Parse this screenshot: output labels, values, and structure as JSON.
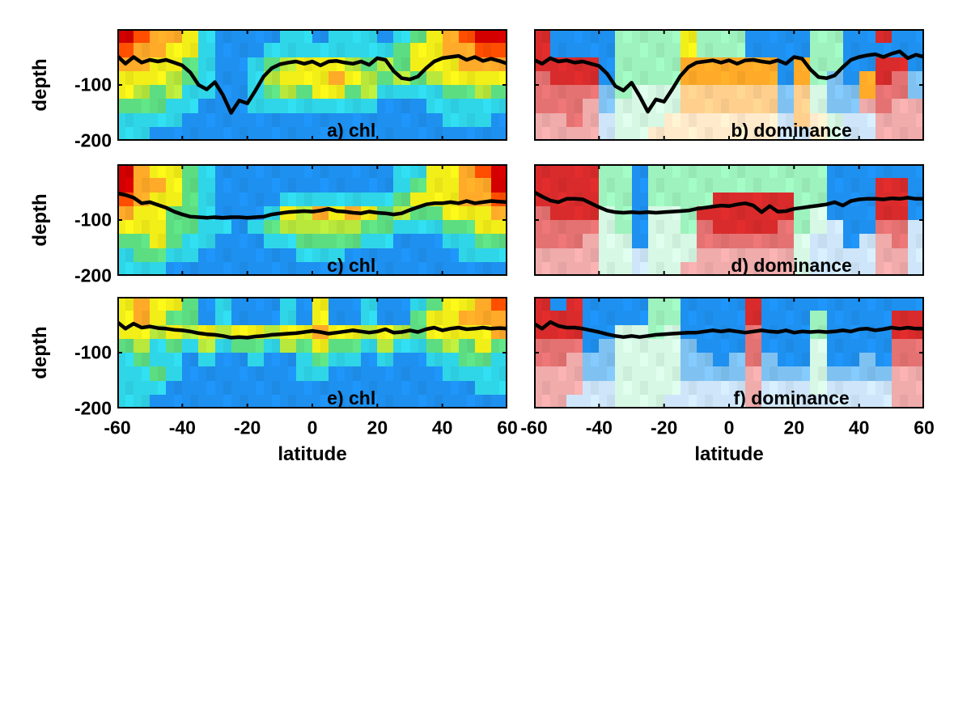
{
  "figure": {
    "background": "#ffffff"
  },
  "axes": {
    "xlabel": "latitude",
    "ylabel": "depth",
    "x_ticks": [
      -60,
      -40,
      -20,
      0,
      20,
      40,
      60
    ],
    "y_ticks": [
      -100,
      -200
    ],
    "x_range": [
      -60,
      60
    ],
    "y_range": [
      0,
      -200
    ]
  },
  "palette": {
    "R": "#d40000",
    "r": "#ff4e00",
    "O": "#ffaa28",
    "o": "#ffcf8e",
    "K": "#ffeacb",
    "Y": "#f2ee18",
    "g": "#b8e83c",
    "G": "#5ddd82",
    "C": "#2fd6e8",
    "B": "#1e90f0",
    "A": "#d92b2b",
    "a": "#e57272",
    "q": "#f0abab",
    "M": "#9df2bd",
    "m": "#d6f8e4",
    "l": "#7fc2f2",
    "L": "#cfe6fa"
  },
  "chart_data": {
    "type": "heatmap",
    "x_axis": "latitude",
    "y_axis": "depth",
    "grid_lat_bin_deg": 5,
    "grid_depth_bin_m": 25,
    "line_lat_start": -60,
    "line_lat_step": 2.5,
    "panels": [
      {
        "id": "a",
        "label": "a) chl",
        "row": 0,
        "col": 0,
        "grid": [
          "RrOOYCBBBBCCBCCCBCGYOrRR",
          "rOOYYCBBBCCCCCCCCGYYOOrr",
          "OOYYGCBBCGgYYYgGgGYYYOOO",
          "YYYgGCBBCgYYYOYgGgGgYYYY",
          "YgGgCCBBCGgGYYGgCCCCGGgG",
          "GGGCCBBBCCCCCCCCBBBCCCCC",
          "CCCCBBBBBBBBBBBBBBBBCCCB",
          "CCBBBBBBBBBBBBBBBBBBBBBB"
        ],
        "line_depth": [
          -48,
          -62,
          -50,
          -60,
          -55,
          -58,
          -55,
          -60,
          -65,
          -78,
          -100,
          -108,
          -95,
          -118,
          -150,
          -128,
          -133,
          -110,
          -85,
          -70,
          -63,
          -60,
          -58,
          -62,
          -58,
          -65,
          -58,
          -57,
          -60,
          -62,
          -58,
          -64,
          -52,
          -55,
          -75,
          -88,
          -90,
          -85,
          -70,
          -58,
          -52,
          -50,
          -48,
          -55,
          -50,
          -57,
          -53,
          -57,
          -62
        ]
      },
      {
        "id": "b",
        "label": "b) dominance",
        "row": 0,
        "col": 1,
        "grid": [
          "ABBBBMMMMYMMMBBBBMMBBABB",
          "ABBBBMMMMYMMMBBBBMMBBBBB",
          "AAAABMMMMOOOOOOBOMMBBAAB",
          "aAAABMMMMOOOOOOBOMlBOAal",
          "aaaalMmmmoooooolomllOaal",
          "aaaqlmmmmoooooolomllqaqq",
          "qqaqLmmmKKKKKKKLoKmLLqqq",
          "qqqqLmmKKKKKKKKLLKmLLqqq"
        ],
        "line_depth": [
          -55,
          -62,
          -52,
          -58,
          -56,
          -60,
          -58,
          -62,
          -66,
          -80,
          -102,
          -110,
          -96,
          -120,
          -148,
          -126,
          -130,
          -108,
          -84,
          -68,
          -60,
          -58,
          -56,
          -60,
          -56,
          -62,
          -56,
          -55,
          -58,
          -60,
          -56,
          -62,
          -50,
          -53,
          -72,
          -86,
          -88,
          -83,
          -68,
          -55,
          -50,
          -47,
          -45,
          -50,
          -44,
          -40,
          -52,
          -46,
          -50
        ]
      },
      {
        "id": "c",
        "label": "c) chl",
        "row": 1,
        "col": 0,
        "grid": [
          "ROYYGCBBBBBBBBBBBCCYYOrR",
          "ROOYGCBBBBBBBBBBBCGYYOOR",
          "rOYYGCBBBBCCCCCCCGYYYOOr",
          "OYYGGCBBBCYgOYOYGgGGYYYO",
          "YYYGGCCBCGgggggGGCCCGGYY",
          "GGYGCCBBBCCGGGGCCBBBCCGG",
          "CGGCCBBBBBBCCCBBBBBBBCCC",
          "CCCBBBBBBBBBBBBBBBBBBBBB"
        ],
        "line_depth": [
          -52,
          -55,
          -60,
          -70,
          -68,
          -73,
          -78,
          -85,
          -90,
          -94,
          -95,
          -96,
          -95,
          -96,
          -95,
          -95,
          -96,
          -95,
          -94,
          -90,
          -88,
          -86,
          -85,
          -84,
          -85,
          -83,
          -80,
          -84,
          -85,
          -87,
          -88,
          -85,
          -87,
          -88,
          -90,
          -88,
          -82,
          -77,
          -72,
          -70,
          -70,
          -68,
          -70,
          -66,
          -70,
          -68,
          -66,
          -67,
          -68
        ]
      },
      {
        "id": "d",
        "label": "d) dominance",
        "row": 1,
        "col": 1,
        "grid": [
          "AAAAMMBMMMMMMMMMMMBBBBBB",
          "AAAAMMBMMMMMMMMMMMBBBAAB",
          "AAAAMMBMMMMAAAAAMMBBBAAB",
          "aAAAmMBmmMAAAAAAMmBBBAAB",
          "aaaamMBmmMaAAAAaMmLBBaaL",
          "aaaqmmBmmmaaaaaamLLBLqaL",
          "qqqqmmLmmmqqqqqqmLLLLqqL",
          "qqqqmmLmmqqqqqqqmLLLLqqL"
        ],
        "line_depth": [
          -50,
          -58,
          -65,
          -68,
          -62,
          -62,
          -63,
          -70,
          -77,
          -83,
          -86,
          -87,
          -86,
          -87,
          -86,
          -87,
          -86,
          -85,
          -84,
          -83,
          -80,
          -78,
          -76,
          -74,
          -75,
          -72,
          -70,
          -74,
          -86,
          -75,
          -85,
          -84,
          -80,
          -78,
          -76,
          -74,
          -72,
          -68,
          -74,
          -66,
          -63,
          -62,
          -62,
          -63,
          -61,
          -62,
          -60,
          -62,
          -62
        ]
      },
      {
        "id": "e",
        "label": "e) chl",
        "row": 2,
        "col": 0,
        "grid": [
          "YOYYGBCBBBCBYBBCBBCGYYOr",
          "YOYGGBCBBBCBYBBCBBGYYOOO",
          "YYgYgYgYYgYYOYYgYgGYYYYO",
          "GgCGCgCGGCgGYGGCgCCGgGYG",
          "CGCCBCBBCBBCGCCBCBBCCGGC",
          "CCGCBBBBBBBCCBBBBBBBCCCC",
          "CCCBBBBBBBBBBBBBBBBBBBCC",
          "CCBBBBBBBBBBBBBBBBBBBBBB"
        ],
        "line_depth": [
          -45,
          -57,
          -48,
          -55,
          -53,
          -56,
          -57,
          -59,
          -60,
          -62,
          -65,
          -67,
          -68,
          -70,
          -73,
          -72,
          -73,
          -71,
          -70,
          -68,
          -67,
          -66,
          -65,
          -63,
          -61,
          -63,
          -66,
          -64,
          -62,
          -60,
          -62,
          -64,
          -62,
          -58,
          -64,
          -63,
          -60,
          -63,
          -58,
          -55,
          -60,
          -57,
          -55,
          -58,
          -57,
          -55,
          -57,
          -56,
          -57
        ]
      },
      {
        "id": "f",
        "label": "f) dominance",
        "row": 2,
        "col": 1,
        "grid": [
          "ABABBBBMMBBBBABBBBBBBBBB",
          "AAABBBBMMBBBBABBBMBBBBAA",
          "AAABBmmMmBBBBaBBBMBBBBAA",
          "aaaBlmmmmlBBBaBBBmBBBBaa",
          "aaqllmmmmllBlalBBmBBlBaa",
          "qqqllmmmmllllqlllmllllqq",
          "qqqLLmmmmLLLLqLLLmLLLLqq",
          "qqLLLmmmLLLLLqLLLLLLLLqq"
        ],
        "line_depth": [
          -48,
          -57,
          -45,
          -52,
          -55,
          -55,
          -57,
          -60,
          -63,
          -67,
          -70,
          -72,
          -70,
          -72,
          -70,
          -68,
          -67,
          -66,
          -65,
          -64,
          -64,
          -62,
          -60,
          -62,
          -60,
          -62,
          -64,
          -62,
          -60,
          -62,
          -63,
          -60,
          -64,
          -62,
          -63,
          -62,
          -63,
          -62,
          -60,
          -62,
          -58,
          -57,
          -60,
          -58,
          -55,
          -57,
          -55,
          -57,
          -57
        ]
      }
    ]
  }
}
